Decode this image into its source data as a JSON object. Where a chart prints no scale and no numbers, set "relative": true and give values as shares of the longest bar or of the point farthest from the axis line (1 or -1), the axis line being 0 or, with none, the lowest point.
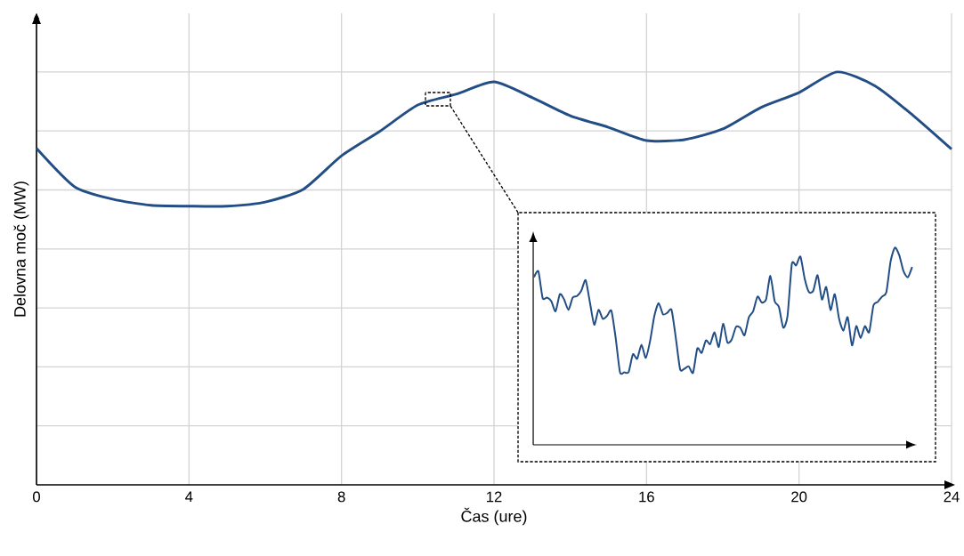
{
  "chart_data": [
    {
      "type": "line",
      "xlabel": "Čas (ure)",
      "ylabel": "Delovna moč (MW)",
      "relative": true,
      "grid": true,
      "color": "#234e85",
      "x": [
        0,
        1,
        2,
        3,
        4,
        5,
        6,
        7,
        8,
        9,
        10,
        11,
        12,
        13,
        14,
        15,
        16,
        17,
        18,
        19,
        20,
        21,
        22,
        23,
        24
      ],
      "values": [
        0.815,
        0.722,
        0.692,
        0.677,
        0.675,
        0.675,
        0.685,
        0.716,
        0.797,
        0.856,
        0.92,
        0.946,
        0.976,
        0.938,
        0.894,
        0.866,
        0.834,
        0.836,
        0.862,
        0.914,
        0.95,
        1.0,
        0.966,
        0.894,
        0.813
      ],
      "xlim": [
        0,
        24
      ],
      "xticks": [
        0,
        4,
        8,
        12,
        16,
        20,
        24
      ]
    },
    {
      "type": "line",
      "relative": true,
      "color": "#234e85",
      "categories": [
        null,
        null,
        null,
        null,
        null,
        null,
        null,
        null,
        null,
        null,
        null,
        null,
        null,
        null,
        null,
        null,
        null,
        null,
        null,
        null,
        null,
        null,
        null,
        null,
        null,
        null,
        null,
        null,
        null,
        null,
        null,
        null,
        null,
        null,
        null,
        null,
        null,
        null,
        null,
        null,
        null,
        null,
        null,
        null,
        null,
        null,
        null,
        null,
        null,
        null,
        null,
        null,
        null,
        null,
        null,
        null,
        null,
        null,
        null,
        null,
        null,
        null,
        null,
        null,
        null,
        null,
        null,
        null,
        null,
        null,
        null,
        null,
        null,
        null,
        null,
        null,
        null,
        null,
        null,
        null,
        null,
        null,
        null,
        null,
        null,
        null,
        null,
        null,
        null
      ],
      "values": [
        0.85,
        0.88,
        0.744,
        0.747,
        0.729,
        0.677,
        0.764,
        0.737,
        0.684,
        0.747,
        0.755,
        0.782,
        0.835,
        0.722,
        0.609,
        0.684,
        0.639,
        0.654,
        0.68,
        0.541,
        0.368,
        0.368,
        0.368,
        0.459,
        0.436,
        0.508,
        0.441,
        0.526,
        0.654,
        0.719,
        0.662,
        0.669,
        0.684,
        0.541,
        0.383,
        0.386,
        0.398,
        0.365,
        0.489,
        0.466,
        0.529,
        0.511,
        0.571,
        0.496,
        0.614,
        0.519,
        0.534,
        0.598,
        0.594,
        0.556,
        0.647,
        0.677,
        0.752,
        0.722,
        0.737,
        0.857,
        0.729,
        0.699,
        0.594,
        0.654,
        0.917,
        0.91,
        0.955,
        0.842,
        0.774,
        0.782,
        0.86,
        0.737,
        0.8,
        0.684,
        0.764,
        0.639,
        0.579,
        0.647,
        0.504,
        0.602,
        0.541,
        0.602,
        0.571,
        0.707,
        0.725,
        0.752,
        0.774,
        0.932,
        1.0,
        0.962,
        0.88,
        0.85,
        0.902
      ]
    }
  ]
}
